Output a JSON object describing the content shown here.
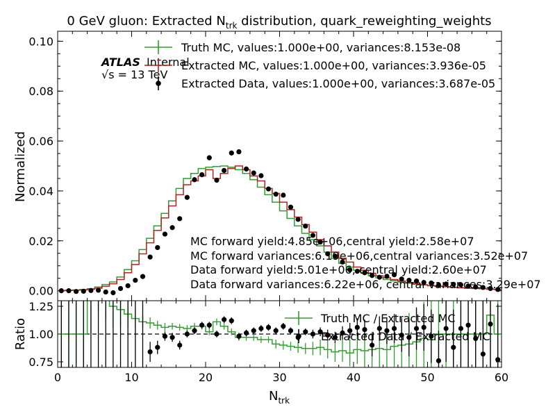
{
  "chart_data": [
    {
      "type": "line",
      "panel": "main",
      "title_main": "0 GeV gluon: Extracted N",
      "title_sub": "trk",
      "title_rest": " distribution, quark_reweighting_weights",
      "ylabel": "Normalized",
      "xlim": [
        0,
        60
      ],
      "ylim": [
        -0.004,
        0.104
      ],
      "yticks": [
        "0.00",
        "0.02",
        "0.04",
        "0.06",
        "0.08",
        "0.10"
      ],
      "ytick_values": [
        0.0,
        0.02,
        0.04,
        0.06,
        0.08,
        0.1
      ],
      "atlas_label": "ATLAS",
      "atlas_suffix": "Internal",
      "energy_label": "√s = 13 TeV",
      "legend": [
        "Truth MC, values:1.000e+00, variances:8.153e-08",
        "Extracted MC, values:1.000e+00, variances:3.936e-05",
        "Extracted Data, values:1.000e+00, variances:3.687e-05"
      ],
      "annotations": [
        "MC forward yield:4.85e+06,central yield:2.58e+07",
        "MC forward variances:6.19e+06,central variances:3.52e+07",
        "Data forward yield:5.01e+06, central yield:2.60e+07",
        "Data forward variances:6.22e+06, central variances:3.29e+07"
      ],
      "colors": {
        "truth": "#2ca02c",
        "mc": "#b22222",
        "data": "#000000"
      },
      "series": [
        {
          "name": "Truth MC",
          "type": "step",
          "bin_edges": [
            0,
            1,
            2,
            3,
            4,
            5,
            6,
            7,
            8,
            9,
            10,
            11,
            12,
            13,
            14,
            15,
            16,
            17,
            18,
            19,
            20,
            21,
            22,
            23,
            24,
            25,
            26,
            27,
            28,
            29,
            30,
            31,
            32,
            33,
            34,
            35,
            36,
            37,
            38,
            39,
            40,
            41,
            42,
            43,
            44,
            45,
            46,
            47,
            48,
            49,
            50,
            51,
            52,
            53,
            54,
            55,
            56,
            57,
            58,
            59,
            60
          ],
          "values": [
            0.0,
            0.0002,
            0.0003,
            0.0005,
            0.0008,
            0.0015,
            0.0025,
            0.0035,
            0.0055,
            0.0085,
            0.012,
            0.0165,
            0.021,
            0.026,
            0.031,
            0.036,
            0.041,
            0.045,
            0.047,
            0.049,
            0.0495,
            0.0498,
            0.05,
            0.0495,
            0.0485,
            0.047,
            0.0445,
            0.0415,
            0.0385,
            0.0355,
            0.032,
            0.029,
            0.026,
            0.023,
            0.0205,
            0.018,
            0.0155,
            0.013,
            0.011,
            0.0095,
            0.0082,
            0.007,
            0.006,
            0.0052,
            0.0045,
            0.004,
            0.0035,
            0.003,
            0.0026,
            0.0023,
            0.002,
            0.0018,
            0.0016,
            0.0014,
            0.0012,
            0.001,
            0.0009,
            0.0008,
            0.0007,
            0.0005
          ]
        },
        {
          "name": "Extracted MC",
          "type": "step",
          "bin_edges": [
            0,
            1,
            2,
            3,
            4,
            5,
            6,
            7,
            8,
            9,
            10,
            11,
            12,
            13,
            14,
            15,
            16,
            17,
            18,
            19,
            20,
            21,
            22,
            23,
            24,
            25,
            26,
            27,
            28,
            29,
            30,
            31,
            32,
            33,
            34,
            35,
            36,
            37,
            38,
            39,
            40,
            41,
            42,
            43,
            44,
            45,
            46,
            47,
            48,
            49,
            50,
            51,
            52,
            53,
            54,
            55,
            56,
            57,
            58,
            59,
            60
          ],
          "values": [
            0.0,
            0.0001,
            0.0002,
            0.0003,
            0.0006,
            0.001,
            0.0018,
            0.0028,
            0.0045,
            0.0072,
            0.0105,
            0.0148,
            0.0192,
            0.0242,
            0.0292,
            0.034,
            0.0385,
            0.0425,
            0.044,
            0.046,
            0.0485,
            0.045,
            0.047,
            0.049,
            0.05,
            0.0485,
            0.046,
            0.044,
            0.041,
            0.039,
            0.0355,
            0.0325,
            0.0295,
            0.0265,
            0.0235,
            0.0205,
            0.018,
            0.0155,
            0.013,
            0.0115,
            0.0095,
            0.0082,
            0.007,
            0.006,
            0.0052,
            0.0045,
            0.0039,
            0.0033,
            0.0028,
            0.0024,
            0.0021,
            0.0018,
            0.0016,
            0.0014,
            0.0012,
            0.001,
            0.0009,
            0.0008,
            0.0006,
            0.0005
          ]
        },
        {
          "name": "Extracted Data",
          "type": "points",
          "x": [
            0.5,
            1.5,
            2.5,
            3.5,
            4.5,
            5.5,
            6.5,
            7.5,
            8.5,
            9.5,
            10.5,
            11.5,
            12.5,
            13.5,
            14.5,
            15.5,
            16.5,
            17.5,
            18.5,
            19.5,
            20.5,
            21.5,
            22.5,
            23.5,
            24.5,
            25.5,
            26.5,
            27.5,
            28.5,
            29.5,
            30.5,
            31.5,
            32.5,
            33.5,
            34.5,
            35.5,
            36.5,
            37.5,
            38.5,
            39.5,
            40.5,
            41.5,
            42.5,
            43.5,
            44.5,
            45.5,
            46.5,
            47.5,
            48.5,
            49.5,
            50.5,
            51.5,
            52.5,
            53.5,
            54.5,
            55.5,
            56.5,
            57.5,
            58.5,
            59.5
          ],
          "y": [
            0.0,
            0.0,
            -0.0003,
            -0.0002,
            0.0001,
            0.0002,
            -0.0005,
            -0.0008,
            0.0009,
            0.002,
            0.0042,
            0.0057,
            0.0135,
            0.0173,
            0.0227,
            0.0253,
            0.0289,
            0.0374,
            0.0445,
            0.0465,
            0.0533,
            0.0443,
            0.0482,
            0.0552,
            0.0557,
            0.0488,
            0.0472,
            0.0461,
            0.0408,
            0.0387,
            0.0383,
            0.0335,
            0.0286,
            0.0259,
            0.0222,
            0.0195,
            0.0148,
            0.0139,
            0.0115,
            0.0084,
            0.0078,
            0.0072,
            0.0061,
            0.0054,
            0.0058,
            0.0064,
            0.0047,
            0.0042,
            0.0039,
            0.0033,
            0.0031,
            0.0023,
            0.0027,
            0.0026,
            0.0024,
            0.0019,
            0.0015,
            0.0013,
            0.0009,
            0.0005
          ],
          "yerr": [
            0.0003,
            0.0003,
            0.0003,
            0.0003,
            0.0003,
            0.0004,
            0.0004,
            0.0005,
            0.0005,
            0.0006,
            0.0006,
            0.0007,
            0.0008,
            0.0008,
            0.0008,
            0.0008,
            0.0009,
            0.0009,
            0.001,
            0.001,
            0.001,
            0.001,
            0.001,
            0.001,
            0.001,
            0.001,
            0.001,
            0.001,
            0.0009,
            0.0009,
            0.0009,
            0.0009,
            0.0008,
            0.0008,
            0.0008,
            0.0007,
            0.0007,
            0.0007,
            0.0006,
            0.0006,
            0.0006,
            0.0006,
            0.0005,
            0.0005,
            0.0005,
            0.0005,
            0.0005,
            0.0004,
            0.0004,
            0.0004,
            0.0004,
            0.0004,
            0.0004,
            0.0004,
            0.0004,
            0.0004,
            0.0004,
            0.0003,
            0.0003,
            0.0003
          ]
        }
      ]
    },
    {
      "type": "line",
      "panel": "ratio",
      "xlabel_main": "N",
      "xlabel_sub": "trk",
      "ylabel": "Ratio",
      "xlim": [
        0,
        60
      ],
      "ylim": [
        0.7,
        1.3
      ],
      "xticks": [
        "0",
        "10",
        "20",
        "30",
        "40",
        "50",
        "60"
      ],
      "xtick_values": [
        0,
        10,
        20,
        30,
        40,
        50,
        60
      ],
      "yticks": [
        "0.75",
        "1.00",
        "1.25"
      ],
      "ytick_values": [
        0.75,
        1.0,
        1.25
      ],
      "reference_line": 1.0,
      "legend": [
        "Truth MC / Extracted MC",
        "Extracted Data / Extracted MC"
      ],
      "series": [
        {
          "name": "Truth MC / Extracted MC",
          "type": "step",
          "bin_edges": [
            0,
            1,
            2,
            3,
            4,
            5,
            6,
            7,
            8,
            9,
            10,
            11,
            12,
            13,
            14,
            15,
            16,
            17,
            18,
            19,
            20,
            21,
            22,
            23,
            24,
            25,
            26,
            27,
            28,
            29,
            30,
            31,
            32,
            33,
            34,
            35,
            36,
            37,
            38,
            39,
            40,
            41,
            42,
            43,
            44,
            45,
            46,
            47,
            48,
            49,
            50,
            51,
            52,
            53,
            54,
            55,
            56,
            57,
            58,
            59,
            60
          ],
          "values": [
            1.0,
            1.0,
            1.0,
            1.0,
            1.4,
            1.5,
            1.38,
            1.25,
            1.22,
            1.18,
            1.14,
            1.11,
            1.1,
            1.08,
            1.06,
            1.07,
            1.06,
            1.05,
            1.07,
            1.07,
            1.02,
            1.11,
            1.07,
            1.02,
            0.97,
            0.97,
            0.97,
            0.95,
            0.95,
            0.91,
            0.9,
            0.89,
            0.88,
            0.87,
            0.87,
            0.88,
            0.86,
            0.84,
            0.85,
            0.83,
            0.86,
            0.85,
            0.86,
            0.87,
            0.86,
            0.89,
            0.9,
            0.91,
            0.93,
            0.96,
            0.95,
            1.0,
            1.0,
            1.0,
            1.0,
            1.0,
            1.0,
            1.0,
            1.17,
            1.0
          ],
          "yerr": [
            0.5,
            0.5,
            0.5,
            0.5,
            0.4,
            0.3,
            0.25,
            0.2,
            0.15,
            0.12,
            0.08,
            0.06,
            0.05,
            0.04,
            0.04,
            0.03,
            0.03,
            0.03,
            0.03,
            0.03,
            0.03,
            0.03,
            0.03,
            0.03,
            0.03,
            0.03,
            0.03,
            0.03,
            0.03,
            0.04,
            0.04,
            0.04,
            0.05,
            0.05,
            0.06,
            0.07,
            0.08,
            0.09,
            0.1,
            0.12,
            0.13,
            0.15,
            0.16,
            0.18,
            0.2,
            0.22,
            0.25,
            0.28,
            0.3,
            0.33,
            0.36,
            0.4,
            0.45,
            0.5,
            0.5,
            0.5,
            0.5,
            0.5,
            0.5,
            0.5
          ]
        },
        {
          "name": "Extracted Data / Extracted MC",
          "type": "points",
          "x": [
            0.5,
            1.5,
            2.5,
            3.5,
            4.5,
            5.5,
            6.5,
            7.5,
            8.5,
            9.5,
            10.5,
            11.5,
            12.5,
            13.5,
            14.5,
            15.5,
            16.5,
            17.5,
            18.5,
            19.5,
            20.5,
            21.5,
            22.5,
            23.5,
            24.5,
            25.5,
            26.5,
            27.5,
            28.5,
            29.5,
            30.5,
            31.5,
            32.5,
            33.5,
            34.5,
            35.5,
            36.5,
            37.5,
            38.5,
            39.5,
            40.5,
            41.5,
            42.5,
            43.5,
            44.5,
            45.5,
            46.5,
            47.5,
            48.5,
            49.5,
            50.5,
            51.5,
            52.5,
            53.5,
            54.5,
            55.5,
            56.5,
            57.5,
            58.5,
            59.5
          ],
          "y": [
            null,
            null,
            null,
            null,
            null,
            null,
            null,
            null,
            null,
            null,
            null,
            null,
            0.84,
            0.88,
            0.98,
            0.97,
            0.9,
            1.0,
            1.03,
            1.08,
            1.08,
            1.0,
            1.13,
            1.12,
            0.98,
            1.01,
            1.03,
            1.05,
            1.06,
            1.03,
            1.07,
            1.03,
            0.97,
            1.02,
            1.0,
            1.02,
            0.99,
            0.97,
            1.01,
            1.03,
            1.06,
            1.04,
            0.9,
            1.05,
            1.03,
            1.05,
            0.99,
            0.97,
            1.05,
            1.06,
            0.98,
            0.76,
            1.05,
            0.88,
            1.05,
            1.08,
            0.96,
            0.82,
            1.09,
            0.77
          ],
          "yerr": [
            0.5,
            0.5,
            0.5,
            0.5,
            0.5,
            0.5,
            0.5,
            0.5,
            0.5,
            0.5,
            0.5,
            0.5,
            0.09,
            0.06,
            0.04,
            0.04,
            0.04,
            0.03,
            0.03,
            0.03,
            0.03,
            0.03,
            0.03,
            0.03,
            0.03,
            0.03,
            0.03,
            0.03,
            0.03,
            0.03,
            0.03,
            0.03,
            0.03,
            0.03,
            0.04,
            0.04,
            0.05,
            0.05,
            0.06,
            0.07,
            0.08,
            0.09,
            0.1,
            0.11,
            0.12,
            0.13,
            0.15,
            0.17,
            0.19,
            0.21,
            0.24,
            0.27,
            0.3,
            0.34,
            0.38,
            0.42,
            0.46,
            0.5,
            0.5,
            0.5
          ]
        }
      ]
    }
  ]
}
